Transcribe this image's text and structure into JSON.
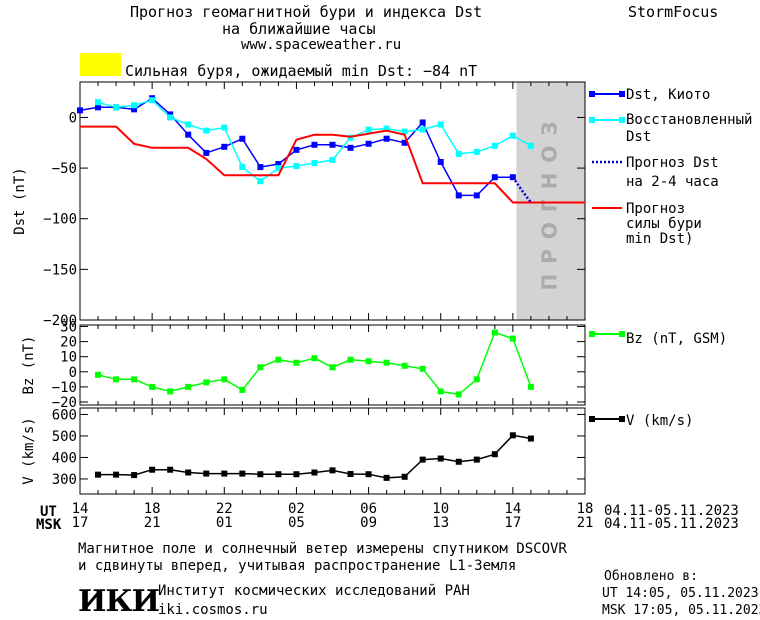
{
  "header": {
    "title_line1": "Прогноз геомагнитной бури и индекса Dst",
    "title_line2": "на ближайшие часы",
    "url": "www.spaceweather.ru",
    "brand": "StormFocus",
    "storm_label": "Сильная буря, ожидаемый min Dst: −84 nT",
    "storm_color": "#ffff00"
  },
  "footer": {
    "ut_label": "UT",
    "msk_label": "MSK",
    "date_range_ut": "04.11-05.11.2023",
    "date_range_msk": "04.11-05.11.2023",
    "note_line1": "Магнитное поле и солнечный ветер измерены спутником DSCOVR",
    "note_line2": "и сдвинуты вперед, учитывая распространение L1-Земля",
    "institute_logo": "ИКИ",
    "institute_name": "Институт космических исследований РАН",
    "institute_url": "iki.cosmos.ru",
    "updated_label": "Обновлено в:",
    "updated_ut": "UT  14:05, 05.11.2023",
    "updated_msk": "MSK 17:05, 05.11.2023"
  },
  "chart_data": [
    {
      "type": "line",
      "ylabel": "Dst (nT)",
      "ylim": [
        -200,
        35
      ],
      "yticks": [
        0,
        -50,
        -100,
        -150,
        -200
      ],
      "x_range_hours": [
        14,
        42
      ],
      "xticks_ut": [
        "14",
        "18",
        "22",
        "02",
        "06",
        "10",
        "14",
        "18"
      ],
      "xticks_msk": [
        "17",
        "21",
        "01",
        "05",
        "09",
        "13",
        "17",
        "21"
      ],
      "forecast_region": {
        "start_hour": 38.2,
        "end_hour": 42,
        "label": "ПРОГНОЗ",
        "color": "#d3d3d3"
      },
      "series": [
        {
          "name": "Dst, Киото",
          "color": "#0000ff",
          "marker": "square",
          "x": [
            14,
            15,
            16,
            17,
            18,
            19,
            20,
            21,
            22,
            23,
            24,
            25,
            26,
            27,
            28,
            29,
            30,
            31,
            32,
            33,
            34,
            35,
            36,
            37,
            38
          ],
          "values": [
            7,
            10,
            10,
            8,
            19,
            3,
            -17,
            -35,
            -29,
            -21,
            -49,
            -46,
            -32,
            -27,
            -27,
            -30,
            -26,
            -21,
            -25,
            -5,
            -44,
            -77,
            -77,
            -59,
            -59
          ]
        },
        {
          "name": "Восстановленный Dst",
          "color": "#00ffff",
          "marker": "square",
          "x": [
            15,
            16,
            17,
            18,
            19,
            20,
            21,
            22,
            23,
            24,
            25,
            26,
            27,
            28,
            29,
            30,
            31,
            32,
            33,
            34,
            35,
            36,
            37,
            38,
            39
          ],
          "values": [
            15,
            10,
            12,
            17,
            0,
            -7,
            -13,
            -10,
            -49,
            -63,
            -50,
            -48,
            -45,
            -42,
            -20,
            -12,
            -11,
            -14,
            -12,
            -7,
            -36,
            -34,
            -28,
            -18,
            -28
          ]
        },
        {
          "name": "Прогноз Dst на 2-4 часа",
          "color": "#0000cc",
          "dashed": true,
          "x": [
            38,
            38.5,
            39
          ],
          "values": [
            -59,
            -72,
            -84
          ]
        },
        {
          "name": "Прогноз силы бури (min Dst)",
          "color": "#ff0000",
          "x": [
            14,
            16,
            17,
            18,
            20,
            21,
            22,
            24,
            25,
            26,
            27,
            28,
            29,
            31,
            32,
            33,
            34,
            36,
            37,
            38,
            39,
            40,
            42
          ],
          "values": [
            -9,
            -9,
            -26,
            -30,
            -30,
            -41,
            -57,
            -57,
            -57,
            -22,
            -17,
            -17,
            -19,
            -13,
            -17,
            -65,
            -65,
            -65,
            -65,
            -84,
            -84,
            -84,
            -84
          ]
        }
      ],
      "legend_position": "right"
    },
    {
      "type": "line",
      "ylabel": "Bz (nT)",
      "ylim": [
        -22,
        31
      ],
      "yticks": [
        30,
        20,
        10,
        0,
        -10,
        -20
      ],
      "series": [
        {
          "name": "Bz (nT, GSM)",
          "color": "#00ff00",
          "marker": "square",
          "x": [
            15,
            16,
            17,
            18,
            19,
            20,
            21,
            22,
            23,
            24,
            25,
            26,
            27,
            28,
            29,
            30,
            31,
            32,
            33,
            34,
            35,
            36,
            37,
            38,
            39
          ],
          "values": [
            -2,
            -5,
            -5,
            -10,
            -13,
            -10,
            -7,
            -5,
            -12,
            3,
            8,
            6,
            9,
            3,
            8,
            7,
            6,
            4,
            2,
            -13,
            -15,
            -5,
            26,
            22,
            -10
          ]
        }
      ],
      "legend_position": "right"
    },
    {
      "type": "line",
      "ylabel": "V (km/s)",
      "ylim": [
        230,
        630
      ],
      "yticks": [
        600,
        500,
        400,
        300
      ],
      "series": [
        {
          "name": "V (km/s)",
          "color": "#000000",
          "marker": "square",
          "x": [
            15,
            16,
            17,
            18,
            19,
            20,
            21,
            22,
            23,
            24,
            25,
            26,
            27,
            28,
            29,
            30,
            31,
            32,
            33,
            34,
            35,
            36,
            37,
            38,
            39
          ],
          "values": [
            320,
            320,
            318,
            343,
            343,
            330,
            325,
            325,
            325,
            322,
            322,
            322,
            330,
            340,
            323,
            322,
            305,
            310,
            390,
            395,
            380,
            390,
            415,
            503,
            488
          ]
        }
      ],
      "legend_position": "right"
    }
  ]
}
